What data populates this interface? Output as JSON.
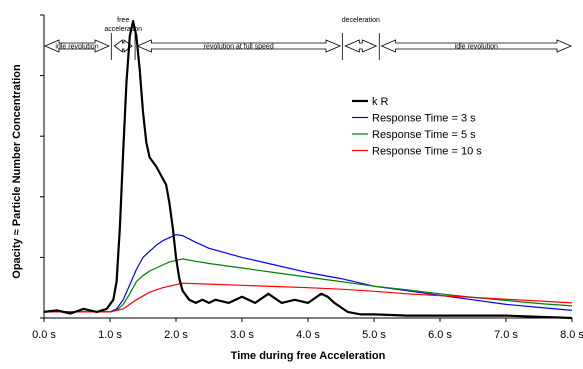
{
  "chart_data": {
    "type": "line",
    "xlabel": "Time during free Acceleration",
    "ylabel": "Opacity ≈ Particle Number Concentration",
    "xlim": [
      0,
      8
    ],
    "ylim": [
      0,
      1
    ],
    "x_ticks": [
      0,
      1,
      2,
      3,
      4,
      5,
      6,
      7,
      8
    ],
    "x_tick_labels": [
      "0.0 s",
      "1.0 s",
      "2.0 s",
      "3.0 s",
      "4.0 s",
      "5.0 s",
      "6.0 s",
      "7.0 s",
      "8.0 s"
    ],
    "y_ticks": [
      0,
      0.2,
      0.4,
      0.6,
      0.8,
      1.0
    ],
    "legend_position": "right",
    "phases": [
      {
        "label": "idle revolution",
        "start": 0.0,
        "end": 1.0
      },
      {
        "label": "free acceleration",
        "start": 1.05,
        "end": 1.35
      },
      {
        "label": "revolution at full speed",
        "start": 1.4,
        "end": 4.5
      },
      {
        "label": "deceleration",
        "start": 4.55,
        "end": 5.05
      },
      {
        "label": "idle revolution",
        "start": 5.1,
        "end": 8.0
      }
    ],
    "series": [
      {
        "name": "k R",
        "color": "#000000",
        "x": [
          0,
          0.2,
          0.4,
          0.6,
          0.8,
          0.95,
          1.05,
          1.1,
          1.15,
          1.2,
          1.25,
          1.3,
          1.35,
          1.4,
          1.45,
          1.5,
          1.55,
          1.6,
          1.7,
          1.8,
          1.85,
          1.9,
          1.95,
          2.0,
          2.05,
          2.1,
          2.2,
          2.3,
          2.4,
          2.5,
          2.6,
          2.8,
          3.0,
          3.2,
          3.4,
          3.6,
          3.8,
          4.0,
          4.2,
          4.3,
          4.4,
          4.5,
          4.6,
          4.8,
          5.0,
          5.5,
          6.0,
          6.5,
          7.0,
          7.5,
          8.0
        ],
        "y": [
          0.02,
          0.025,
          0.015,
          0.03,
          0.02,
          0.03,
          0.06,
          0.12,
          0.3,
          0.55,
          0.78,
          0.93,
          0.98,
          0.93,
          0.82,
          0.68,
          0.58,
          0.53,
          0.5,
          0.46,
          0.44,
          0.38,
          0.3,
          0.2,
          0.13,
          0.09,
          0.06,
          0.05,
          0.06,
          0.05,
          0.06,
          0.05,
          0.07,
          0.05,
          0.08,
          0.05,
          0.06,
          0.05,
          0.08,
          0.07,
          0.05,
          0.035,
          0.02,
          0.012,
          0.012,
          0.008,
          0.008,
          0.008,
          0.008,
          0.004,
          0.0
        ]
      },
      {
        "name": "Response Time = 3 s",
        "color": "#0000ff",
        "x": [
          0,
          0.5,
          1.0,
          1.1,
          1.2,
          1.3,
          1.4,
          1.5,
          1.6,
          1.7,
          1.8,
          1.9,
          2.0,
          2.1,
          2.3,
          2.5,
          3.0,
          3.5,
          4.0,
          4.5,
          5.0,
          5.5,
          6.0,
          6.5,
          7.0,
          7.5,
          8.0
        ],
        "y": [
          0.02,
          0.02,
          0.02,
          0.03,
          0.06,
          0.11,
          0.16,
          0.2,
          0.22,
          0.24,
          0.255,
          0.265,
          0.275,
          0.272,
          0.25,
          0.23,
          0.2,
          0.175,
          0.15,
          0.13,
          0.105,
          0.09,
          0.075,
          0.06,
          0.045,
          0.035,
          0.025
        ]
      },
      {
        "name": "Response Time = 5 s",
        "color": "#008000",
        "x": [
          0,
          0.5,
          1.0,
          1.1,
          1.2,
          1.3,
          1.4,
          1.5,
          1.6,
          1.7,
          1.8,
          1.9,
          2.0,
          2.1,
          2.3,
          2.5,
          3.0,
          3.5,
          4.0,
          4.5,
          5.0,
          5.5,
          6.0,
          6.5,
          7.0,
          7.5,
          8.0
        ],
        "y": [
          0.02,
          0.02,
          0.02,
          0.025,
          0.045,
          0.08,
          0.12,
          0.14,
          0.155,
          0.165,
          0.175,
          0.185,
          0.19,
          0.195,
          0.187,
          0.18,
          0.165,
          0.15,
          0.135,
          0.12,
          0.105,
          0.093,
          0.08,
          0.068,
          0.058,
          0.048,
          0.04
        ]
      },
      {
        "name": "Response Time = 10 s",
        "color": "#ff0000",
        "x": [
          0,
          0.5,
          1.0,
          1.2,
          1.4,
          1.6,
          1.8,
          2.0,
          2.1,
          2.5,
          3.0,
          3.5,
          4.0,
          4.5,
          5.0,
          5.5,
          6.0,
          6.5,
          7.0,
          7.5,
          8.0
        ],
        "y": [
          0.02,
          0.02,
          0.02,
          0.03,
          0.06,
          0.085,
          0.1,
          0.11,
          0.115,
          0.112,
          0.108,
          0.104,
          0.1,
          0.095,
          0.088,
          0.08,
          0.074,
          0.068,
          0.062,
          0.056,
          0.05
        ]
      }
    ]
  }
}
